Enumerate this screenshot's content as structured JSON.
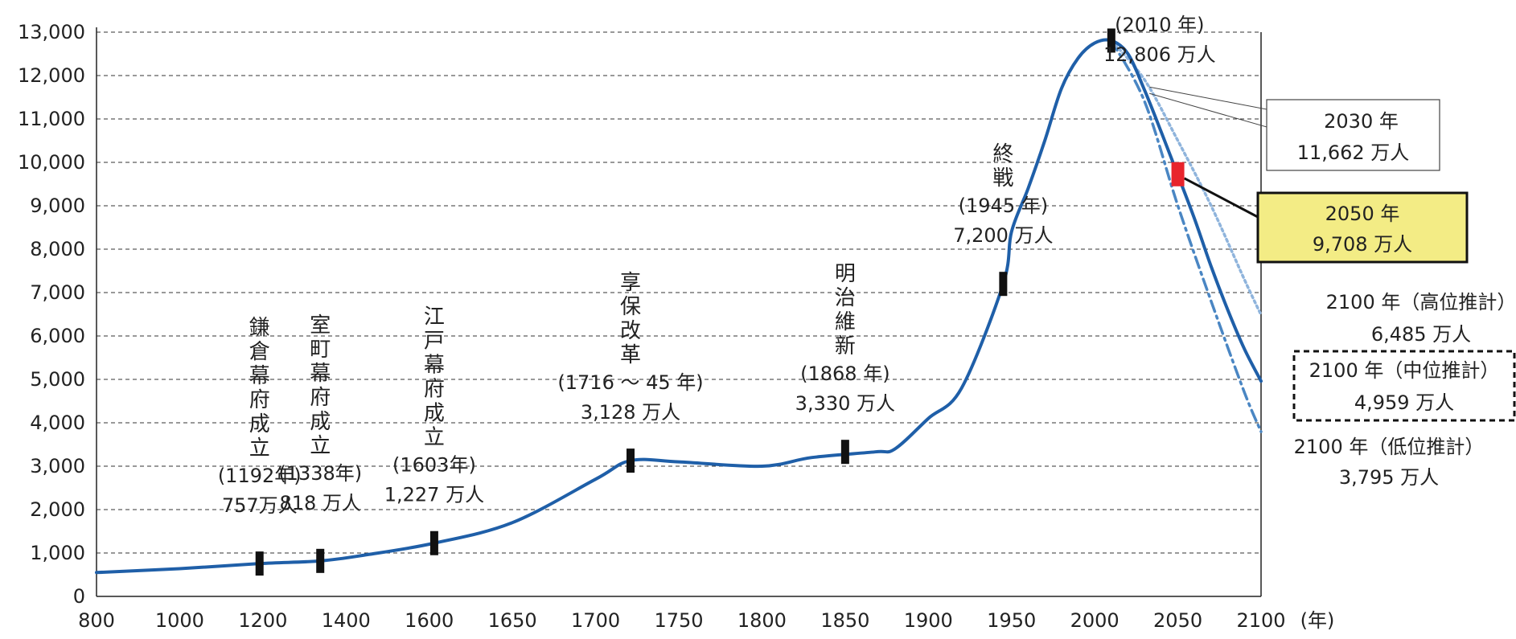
{
  "chart_data": {
    "type": "line",
    "xlabel": "",
    "x_unit": "(年)",
    "ylabel": "",
    "xlim": [
      800,
      2100
    ],
    "ylim": [
      0,
      13000
    ],
    "grid": true,
    "xticks": [
      800,
      1000,
      1200,
      1400,
      1600,
      1650,
      1700,
      1750,
      1800,
      1850,
      1900,
      1950,
      2000,
      2050,
      2100
    ],
    "xtick_labels": [
      "800",
      "1000",
      "1200",
      "1400",
      "1600",
      "1650",
      "1700",
      "1750",
      "1800",
      "1850",
      "1900",
      "1950",
      "2000",
      "2050",
      "2100"
    ],
    "yticks": [
      0,
      1000,
      2000,
      3000,
      4000,
      5000,
      6000,
      7000,
      8000,
      9000,
      10000,
      11000,
      12000,
      13000
    ],
    "ytick_labels": [
      "0",
      "1,000",
      "2,000",
      "3,000",
      "4,000",
      "5,000",
      "6,000",
      "7,000",
      "8,000",
      "9,000",
      "10,000",
      "11,000",
      "12,000",
      "13,000"
    ],
    "colors": {
      "main": "#1f5fa8",
      "high": "#8fb4dc",
      "low": "#4a86c3",
      "marker": "#111111",
      "highlight": "#e8242c",
      "callout_fill": "#f3ec85"
    },
    "series": [
      {
        "style": "solid",
        "x": [
          800,
          1000,
          1192,
          1338,
          1450,
          1603,
          1650,
          1700,
          1721,
          1750,
          1800,
          1830,
          1868,
          1880,
          1900,
          1920,
          1945,
          1950,
          1960,
          1970,
          1980,
          1990,
          2000,
          2010,
          2020,
          2030,
          2040,
          2050,
          2060,
          2070,
          2080,
          2090,
          2100
        ],
        "y": [
          550,
          640,
          757,
          818,
          960,
          1227,
          1700,
          2700,
          3128,
          3100,
          3000,
          3200,
          3330,
          3400,
          4100,
          4800,
          7200,
          8400,
          9400,
          10500,
          11700,
          12400,
          12750,
          12806,
          12500,
          11662,
          10700,
          9708,
          8700,
          7600,
          6600,
          5700,
          4959
        ]
      },
      {
        "style": "dotted",
        "x": [
          2010,
          2030,
          2050,
          2070,
          2090,
          2100
        ],
        "y": [
          12806,
          11900,
          10500,
          9000,
          7300,
          6485
        ]
      },
      {
        "style": "dash-dot",
        "x": [
          2010,
          2030,
          2050,
          2070,
          2090,
          2100
        ],
        "y": [
          12806,
          11400,
          9000,
          6800,
          4700,
          3795
        ]
      }
    ],
    "events": [
      {
        "x": 1192,
        "y": 757,
        "vertical": "鎌倉幕府成立",
        "year": "(1192年)",
        "pop": "757万人"
      },
      {
        "x": 1338,
        "y": 818,
        "vertical": "室町幕府成立",
        "year": "(1338年)",
        "pop": "818 万人"
      },
      {
        "x": 1603,
        "y": 1227,
        "vertical": "江戸幕府成立",
        "year": "(1603年)",
        "pop": "1,227 万人"
      },
      {
        "x": 1721,
        "y": 3128,
        "vertical": "享保改革",
        "year": "(1716 ～ 45 年)",
        "pop": "3,128 万人"
      },
      {
        "x": 1850,
        "y": 3330,
        "vertical": "明治維新",
        "year": "(1868 年)",
        "pop": "3,330 万人"
      },
      {
        "x": 1945,
        "y": 7200,
        "vertical": "終戦",
        "year": "(1945 年)",
        "pop": "7,200 万人"
      },
      {
        "x": 2010,
        "y": 12806,
        "vertical": "",
        "year": "(2010 年)",
        "pop": "12,806 万人"
      }
    ],
    "callouts": {
      "y2030": {
        "x": 2030,
        "y": 11662,
        "line1": "2030 年",
        "line2": "11,662 万人"
      },
      "y2050": {
        "x": 2050,
        "y": 9708,
        "line1": "2050 年",
        "line2": "9,708 万人"
      },
      "high": {
        "line1": "2100 年（高位推計）",
        "line2": "6,485 万人"
      },
      "mid": {
        "line1": "2100 年（中位推計）",
        "line2": "4,959 万人"
      },
      "low": {
        "line1": "2100 年（低位推計）",
        "line2": "3,795 万人"
      }
    }
  }
}
